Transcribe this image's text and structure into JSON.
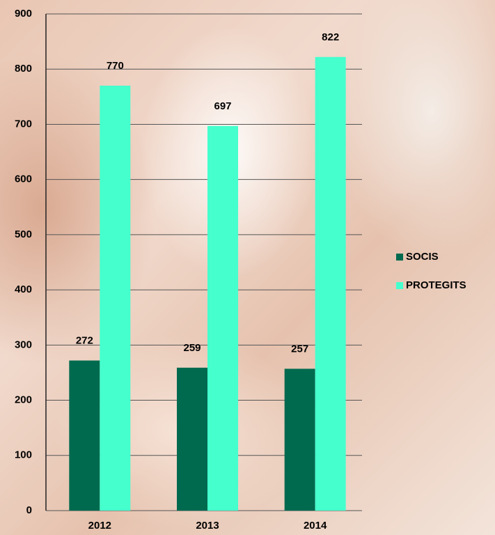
{
  "chart_data": {
    "type": "bar",
    "categories": [
      "2012",
      "2013",
      "2014"
    ],
    "series": [
      {
        "name": "SOCIS",
        "color": "#006a4f",
        "values": [
          272,
          259,
          257
        ]
      },
      {
        "name": "PROTEGITS",
        "color": "#45ffcd",
        "values": [
          770,
          697,
          822
        ]
      }
    ],
    "ylim": [
      0,
      900
    ],
    "yticks": [
      0,
      100,
      200,
      300,
      400,
      500,
      600,
      700,
      800,
      900
    ],
    "grid": true,
    "legend": "right"
  }
}
